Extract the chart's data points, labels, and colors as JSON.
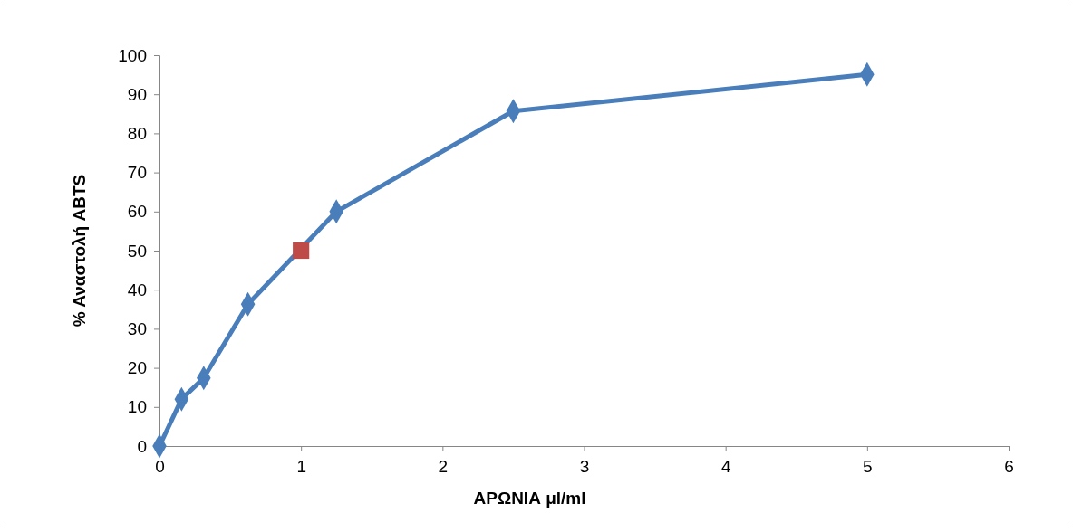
{
  "chart_data": {
    "type": "line",
    "xlabel": "ΑΡΩΝΙΑ μl/ml",
    "ylabel": "% Αναστολή ABTS",
    "xlim": [
      0,
      6
    ],
    "xticks": [
      0,
      1,
      2,
      3,
      4,
      5,
      6
    ],
    "ylim": [
      0,
      100
    ],
    "yticks": [
      0,
      10,
      20,
      30,
      40,
      50,
      60,
      70,
      80,
      90,
      100
    ],
    "grid": false,
    "series": [
      {
        "color": "#4a7ebb",
        "marker": "diamond",
        "x": [
          0,
          0.156,
          0.3125,
          0.625,
          1.25,
          2.5,
          5
        ],
        "values": [
          0,
          12,
          17.4,
          36.3,
          60,
          85.7,
          95.1
        ]
      },
      {
        "type": "scatter",
        "color": "#be4b48",
        "marker": "square",
        "x": [
          1
        ],
        "values": [
          50
        ]
      }
    ]
  }
}
